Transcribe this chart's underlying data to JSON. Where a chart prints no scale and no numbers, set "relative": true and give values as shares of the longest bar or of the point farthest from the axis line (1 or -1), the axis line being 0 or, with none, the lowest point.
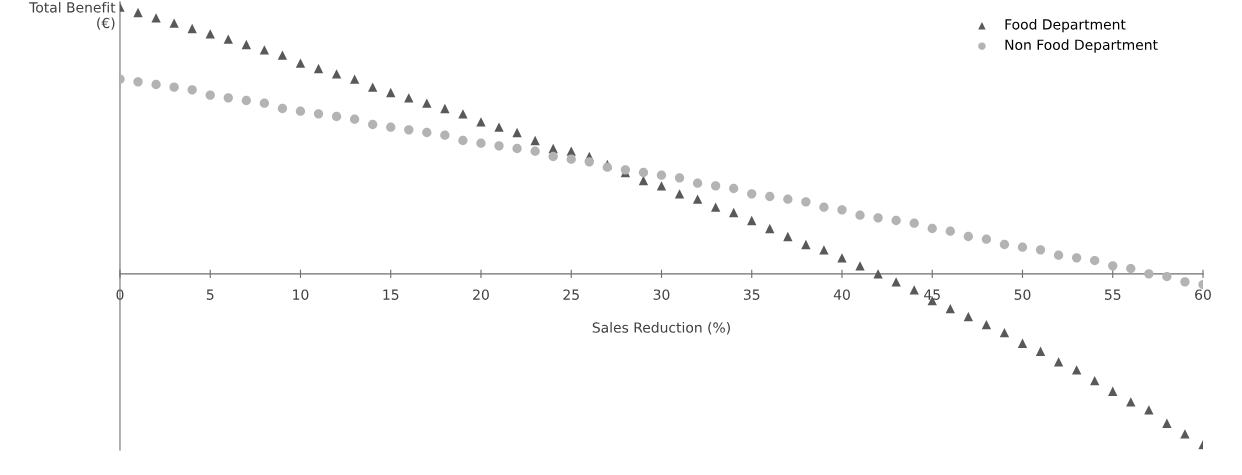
{
  "chart_data": {
    "type": "scatter",
    "relative": true,
    "xlabel": "Sales Reduction (%)",
    "ylabel": "Total Benefit\n(€)",
    "x": [
      0,
      1,
      2,
      3,
      4,
      5,
      6,
      7,
      8,
      9,
      10,
      11,
      12,
      13,
      14,
      15,
      16,
      17,
      18,
      19,
      20,
      21,
      22,
      23,
      24,
      25,
      26,
      27,
      28,
      29,
      30,
      31,
      32,
      33,
      34,
      35,
      36,
      37,
      38,
      39,
      40,
      41,
      42,
      43,
      44,
      45,
      46,
      47,
      48,
      49,
      50,
      51,
      52,
      53,
      54,
      55,
      56,
      57,
      58,
      59,
      60
    ],
    "xlim": [
      0,
      60
    ],
    "xticks": [
      0,
      5,
      10,
      15,
      20,
      25,
      30,
      35,
      40,
      45,
      50,
      55,
      60
    ],
    "grid": false,
    "legend": "top right",
    "series": [
      {
        "name": "Food Department",
        "color": "#595959",
        "marker": "triangle",
        "values": [
          1,
          0.98,
          0.96,
          0.94,
          0.92,
          0.9,
          0.88,
          0.86,
          0.84,
          0.82,
          0.79,
          0.77,
          0.75,
          0.73,
          0.7,
          0.68,
          0.66,
          0.64,
          0.62,
          0.6,
          0.57,
          0.55,
          0.53,
          0.5,
          0.47,
          0.46,
          0.44,
          0.41,
          0.38,
          0.35,
          0.33,
          0.3,
          0.28,
          0.25,
          0.23,
          0.2,
          0.17,
          0.14,
          0.11,
          0.09,
          0.06,
          0.03,
          0.0,
          -0.03,
          -0.06,
          -0.1,
          -0.13,
          -0.16,
          -0.19,
          -0.22,
          -0.26,
          -0.29,
          -0.33,
          -0.36,
          -0.4,
          -0.44,
          -0.48,
          -0.51,
          -0.56,
          -0.6,
          -0.64
        ]
      },
      {
        "name": "Non Food Department",
        "color": "#b3b3b3",
        "marker": "circle",
        "values": [
          0.73,
          0.72,
          0.71,
          0.7,
          0.69,
          0.67,
          0.66,
          0.65,
          0.64,
          0.62,
          0.61,
          0.6,
          0.59,
          0.58,
          0.56,
          0.55,
          0.54,
          0.53,
          0.52,
          0.5,
          0.49,
          0.48,
          0.47,
          0.46,
          0.44,
          0.43,
          0.42,
          0.4,
          0.39,
          0.38,
          0.37,
          0.36,
          0.34,
          0.33,
          0.32,
          0.3,
          0.29,
          0.28,
          0.27,
          0.25,
          0.24,
          0.22,
          0.21,
          0.2,
          0.19,
          0.17,
          0.16,
          0.14,
          0.13,
          0.11,
          0.1,
          0.09,
          0.07,
          0.06,
          0.05,
          0.03,
          0.02,
          0.0,
          -0.01,
          -0.03,
          -0.04
        ]
      }
    ]
  }
}
